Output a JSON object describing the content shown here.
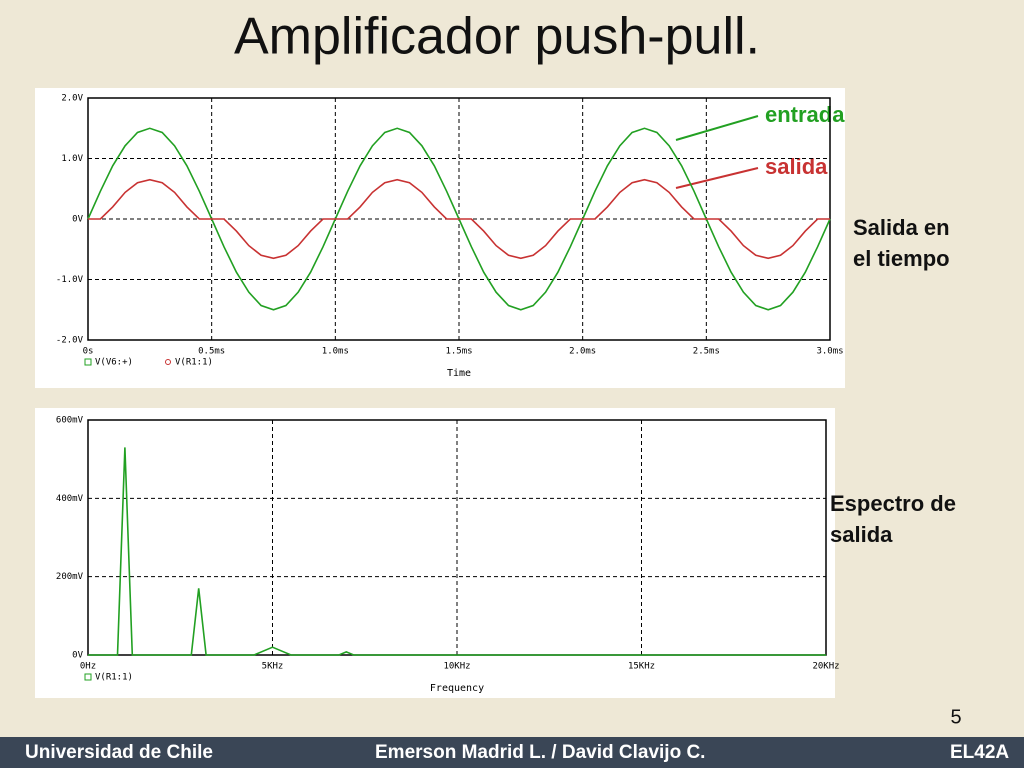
{
  "slide": {
    "title": "Amplificador push-pull.",
    "page_number": "5",
    "annotations": [
      "entrada",
      "salida",
      "Salida en el tiempo",
      "Espectro de salida"
    ],
    "footer": [
      "Universidad de Chile",
      "Emerson Madrid L.  /  David Clavijo C.",
      "EL42A"
    ]
  },
  "chart_data": [
    {
      "type": "line",
      "x_label": "Time",
      "x": [
        0,
        0.05,
        0.1,
        0.15,
        0.2,
        0.25,
        0.3,
        0.35,
        0.4,
        0.45,
        0.5,
        0.55,
        0.6,
        0.65,
        0.7,
        0.75,
        0.8,
        0.85,
        0.9,
        0.95,
        1,
        1.05,
        1.1,
        1.15,
        1.2,
        1.25,
        1.3,
        1.35,
        1.4,
        1.45,
        1.5,
        1.55,
        1.6,
        1.65,
        1.7,
        1.75,
        1.8,
        1.85,
        1.9,
        1.95,
        2,
        2.05,
        2.1,
        2.15,
        2.2,
        2.25,
        2.3,
        2.35,
        2.4,
        2.45,
        2.5,
        2.55,
        2.6,
        2.65,
        2.7,
        2.75,
        2.8,
        2.85,
        2.9,
        2.95,
        3
      ],
      "series": [
        {
          "name": "V(V6:+)",
          "color": "#22a022",
          "marker": "square",
          "values": [
            0,
            0.46,
            0.88,
            1.21,
            1.43,
            1.5,
            1.43,
            1.21,
            0.88,
            0.46,
            0,
            -0.46,
            -0.88,
            -1.21,
            -1.43,
            -1.5,
            -1.43,
            -1.21,
            -0.88,
            -0.46,
            0,
            0.46,
            0.88,
            1.21,
            1.43,
            1.5,
            1.43,
            1.21,
            0.88,
            0.46,
            0,
            -0.46,
            -0.88,
            -1.21,
            -1.43,
            -1.5,
            -1.43,
            -1.21,
            -0.88,
            -0.46,
            0,
            0.46,
            0.88,
            1.21,
            1.43,
            1.5,
            1.43,
            1.21,
            0.88,
            0.46,
            0,
            -0.46,
            -0.88,
            -1.21,
            -1.43,
            -1.5,
            -1.43,
            -1.21,
            -0.88,
            -0.46,
            0
          ]
        },
        {
          "name": "V(R1:1)",
          "color": "#c83232",
          "marker": "circle",
          "values": [
            0,
            0,
            0.2,
            0.44,
            0.6,
            0.65,
            0.6,
            0.44,
            0.2,
            0,
            0,
            0,
            -0.2,
            -0.44,
            -0.6,
            -0.65,
            -0.6,
            -0.44,
            -0.2,
            0,
            0,
            0,
            0.2,
            0.44,
            0.6,
            0.65,
            0.6,
            0.44,
            0.2,
            0,
            0,
            0,
            -0.2,
            -0.44,
            -0.6,
            -0.65,
            -0.6,
            -0.44,
            -0.2,
            0,
            0,
            0,
            0.2,
            0.44,
            0.6,
            0.65,
            0.6,
            0.44,
            0.2,
            0,
            0,
            0,
            -0.2,
            -0.44,
            -0.6,
            -0.65,
            -0.6,
            -0.44,
            -0.2,
            0,
            0
          ]
        }
      ],
      "xlim": [
        0,
        3
      ],
      "xticks": [
        {
          "value": 0,
          "label": "0s"
        },
        {
          "value": 0.5,
          "label": "0.5ms"
        },
        {
          "value": 1,
          "label": "1.0ms"
        },
        {
          "value": 1.5,
          "label": "1.5ms"
        },
        {
          "value": 2,
          "label": "2.0ms"
        },
        {
          "value": 2.5,
          "label": "2.5ms"
        },
        {
          "value": 3,
          "label": "3.0ms"
        }
      ],
      "ylim": [
        -2,
        2
      ],
      "yticks": [
        {
          "value": -2,
          "label": "-2.0V"
        },
        {
          "value": -1,
          "label": "-1.0V"
        },
        {
          "value": 0,
          "label": "0V"
        },
        {
          "value": 1,
          "label": "1.0V"
        },
        {
          "value": 2,
          "label": "2.0V"
        }
      ],
      "grid": true
    },
    {
      "type": "line",
      "x_label": "Frequency",
      "x": [
        0,
        0.5,
        0.8,
        1,
        1.2,
        1.5,
        2.5,
        2.8,
        3,
        3.2,
        3.5,
        4.5,
        5,
        5.5,
        6.8,
        7,
        7.2,
        10,
        20
      ],
      "series": [
        {
          "name": "V(R1:1)",
          "color": "#22a022",
          "marker": "square",
          "values": [
            0,
            0,
            0,
            530,
            0,
            0,
            0,
            0,
            170,
            0,
            0,
            0,
            20,
            0,
            0,
            8,
            0,
            0,
            0
          ]
        }
      ],
      "xlim": [
        0,
        20
      ],
      "xticks": [
        {
          "value": 0,
          "label": "0Hz"
        },
        {
          "value": 5,
          "label": "5KHz"
        },
        {
          "value": 10,
          "label": "10KHz"
        },
        {
          "value": 15,
          "label": "15KHz"
        },
        {
          "value": 20,
          "label": "20KHz"
        }
      ],
      "ylim": [
        0,
        600
      ],
      "yticks": [
        {
          "value": 0,
          "label": "0V"
        },
        {
          "value": 200,
          "label": "200mV"
        },
        {
          "value": 400,
          "label": "400mV"
        },
        {
          "value": 600,
          "label": "600mV"
        }
      ],
      "grid": true
    }
  ]
}
